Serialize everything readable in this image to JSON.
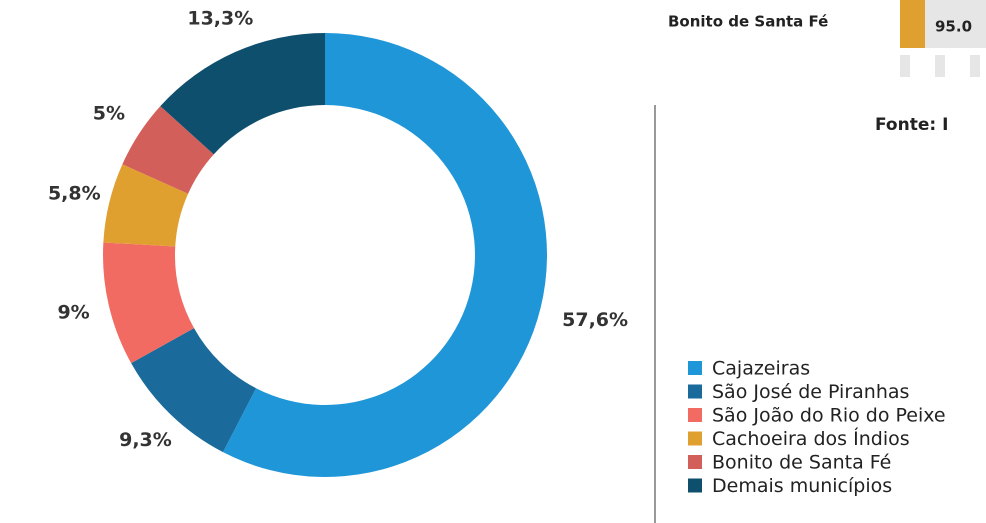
{
  "chart_data": {
    "type": "donut",
    "categories": [
      "Cajazeiras",
      "São José de Piranhas",
      "São João do Rio do Peixe",
      "Cachoeira dos Índios",
      "Bonito de Santa Fé",
      "Demais municípios"
    ],
    "values": [
      57.6,
      9.3,
      9,
      5.8,
      5,
      13.3
    ],
    "value_labels": [
      "57,6%",
      "9,3%",
      "9%",
      "5,8%",
      "5%",
      "13,3%"
    ],
    "colors": [
      "#1f96d8",
      "#1a6a9c",
      "#f26b63",
      "#e0a030",
      "#d35f5a",
      "#0f4f6e"
    ],
    "annotations": [
      "Bonito de Santa Fé",
      "95.0",
      "Fonte: I"
    ]
  }
}
